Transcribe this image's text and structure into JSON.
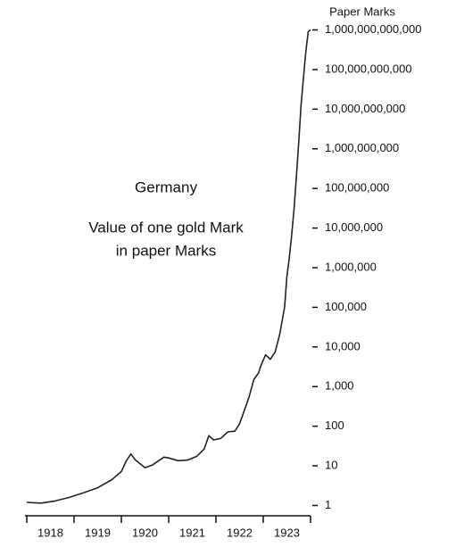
{
  "chart_data": {
    "type": "line",
    "title": "Germany",
    "subtitle": [
      "Value of one gold Mark",
      "in paper Marks"
    ],
    "y_label": "Paper Marks",
    "log_scale": true,
    "categories": [
      "1918",
      "1919",
      "1920",
      "1921",
      "1922",
      "1923"
    ],
    "xlim": [
      1918,
      1924
    ],
    "xticks": [
      1918,
      1919,
      1920,
      1921,
      1922,
      1923,
      1924
    ],
    "ylim": [
      0.55,
      1200000000000
    ],
    "yticks": [
      1,
      10,
      100,
      {
        "value": 1000,
        "label": "1,000"
      },
      {
        "value": 10000,
        "label": "10,000"
      },
      {
        "value": 100000,
        "label": "100,000"
      },
      {
        "value": 1000000,
        "label": "1,000,000"
      },
      {
        "value": 10000000,
        "label": "10,000,000"
      },
      {
        "value": 100000000,
        "label": "100,000,000"
      },
      {
        "value": 1000000000,
        "label": "1,000,000,000"
      },
      {
        "value": 10000000000,
        "label": "10,000,000,000"
      },
      {
        "value": 100000000000,
        "label": "100,000,000,000"
      },
      {
        "value": 1000000000000,
        "label": "1,000,000,000,000"
      }
    ],
    "series": [
      {
        "name": "Value of one gold Mark in paper Marks",
        "color": "#222222",
        "x": [
          1918.0,
          1918.3,
          1918.6,
          1918.9,
          1919.2,
          1919.5,
          1919.8,
          1920.0,
          1920.1,
          1920.2,
          1920.3,
          1920.5,
          1920.65,
          1920.9,
          1921.0,
          1921.2,
          1921.4,
          1921.6,
          1921.75,
          1921.85,
          1921.95,
          1922.1,
          1922.25,
          1922.4,
          1922.5,
          1922.6,
          1922.7,
          1922.8,
          1922.9,
          1922.95,
          1923.05,
          1923.15,
          1923.25,
          1923.35,
          1923.45,
          1923.5,
          1923.55,
          1923.6,
          1923.65,
          1923.7,
          1923.75,
          1923.8,
          1923.85,
          1923.9,
          1923.95,
          1924.0
        ],
        "values": [
          1.2,
          1.15,
          1.3,
          1.6,
          2.1,
          2.8,
          4.5,
          7.2,
          13,
          20,
          14,
          9,
          10.4,
          16.6,
          15.8,
          13.5,
          14,
          17.6,
          26.6,
          58,
          45,
          49,
          72,
          75,
          115,
          250,
          550,
          1500,
          2200,
          3400,
          6300,
          4900,
          7400,
          21000,
          100000,
          600000,
          1700000,
          6500000,
          30000000,
          190000000,
          1500000000,
          13000000000,
          60000000000,
          280000000000,
          900000000000,
          1000000000000
        ]
      }
    ]
  }
}
